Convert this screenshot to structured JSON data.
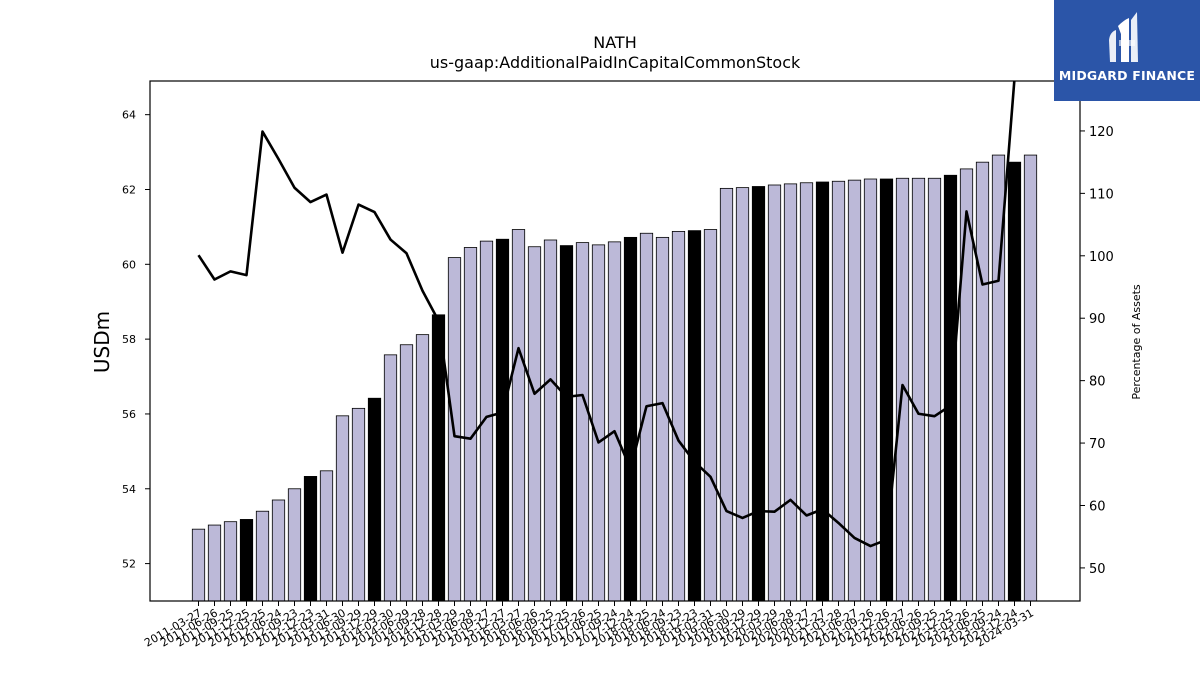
{
  "chart_data": {
    "type": "bar",
    "title": "NATH",
    "subtitle": "us-gaap:AdditionalPaidInCapitalCommonStock",
    "ylabel": "USDm",
    "ylabel_right": "Percentage of Assets",
    "ylim": [
      51.0,
      64.9
    ],
    "ylim_right": [
      44.7,
      128.0
    ],
    "yticks": [
      52,
      54,
      56,
      58,
      60,
      62,
      64
    ],
    "yticks_right": [
      50,
      60,
      70,
      80,
      90,
      100,
      110,
      120
    ],
    "grid": false,
    "categories": [
      "2011-03-27",
      "2011-06-26",
      "2011-09-25",
      "2011-12-25",
      "2012-03-25",
      "2012-06-24",
      "2012-09-23",
      "2012-12-23",
      "2013-03-31",
      "2013-06-30",
      "2013-09-29",
      "2013-12-29",
      "2014-03-30",
      "2014-06-29",
      "2014-09-28",
      "2014-12-28",
      "2015-03-29",
      "2015-06-28",
      "2015-09-27",
      "2015-12-27",
      "2016-03-27",
      "2016-06-26",
      "2016-09-25",
      "2016-12-25",
      "2017-03-26",
      "2017-06-25",
      "2017-09-24",
      "2017-12-24",
      "2018-03-25",
      "2018-06-24",
      "2018-09-23",
      "2018-12-23",
      "2019-03-31",
      "2019-06-30",
      "2019-09-29",
      "2019-12-29",
      "2020-03-29",
      "2020-06-28",
      "2020-09-27",
      "2020-12-27",
      "2021-03-28",
      "2021-06-27",
      "2021-09-26",
      "2021-12-26",
      "2022-03-27",
      "2022-06-26",
      "2022-09-25",
      "2022-12-25",
      "2023-03-26",
      "2023-06-25",
      "2023-09-24",
      "2023-12-24",
      "2024-03-31"
    ],
    "series": [
      {
        "axis": "left",
        "type": "bar",
        "values": [
          52.92,
          53.03,
          53.12,
          53.18,
          53.4,
          53.7,
          54.0,
          54.33,
          54.48,
          55.95,
          56.15,
          56.42,
          57.58,
          57.85,
          58.12,
          58.65,
          60.18,
          60.45,
          60.62,
          60.67,
          60.93,
          60.47,
          60.65,
          60.5,
          60.58,
          60.52,
          60.6,
          60.72,
          60.83,
          60.72,
          60.88,
          60.9,
          60.93,
          62.03,
          62.05,
          62.08,
          62.12,
          62.15,
          62.18,
          62.2,
          62.22,
          62.25,
          62.28,
          62.28,
          62.3,
          62.3,
          62.3,
          62.38,
          62.55,
          62.73,
          62.92,
          62.73,
          62.92
        ],
        "highlight": [
          false,
          false,
          false,
          true,
          false,
          false,
          false,
          true,
          false,
          false,
          false,
          true,
          false,
          false,
          false,
          true,
          false,
          false,
          false,
          true,
          false,
          false,
          false,
          true,
          false,
          false,
          false,
          true,
          false,
          false,
          false,
          true,
          false,
          false,
          false,
          true,
          false,
          false,
          false,
          true,
          false,
          false,
          false,
          true,
          false,
          false,
          false,
          true,
          false,
          false,
          false,
          true,
          false
        ],
        "color": "#bcb9d8",
        "highlight_color": "#000000"
      },
      {
        "axis": "right",
        "type": "line",
        "values": [
          100.1,
          96.2,
          97.5,
          96.9,
          119.9,
          115.5,
          110.9,
          108.6,
          109.8,
          100.5,
          108.2,
          107.0,
          102.6,
          100.4,
          94.4,
          89.6,
          71.1,
          70.7,
          74.2,
          74.9,
          85.2,
          77.9,
          80.2,
          77.4,
          77.7,
          70.1,
          71.9,
          65.9,
          75.9,
          76.4,
          70.4,
          67.0,
          64.6,
          59.1,
          58.0,
          59.1,
          59.0,
          60.9,
          58.4,
          59.4,
          57.2,
          54.8,
          53.5,
          54.5,
          79.3,
          74.7,
          74.3,
          76.0,
          107.1,
          95.4,
          96.0,
          128.4,
          130.0
        ],
        "color": "#000000"
      }
    ]
  },
  "logo": {
    "text": "MIDGARD FINANCE",
    "color": "#2b55a8"
  }
}
